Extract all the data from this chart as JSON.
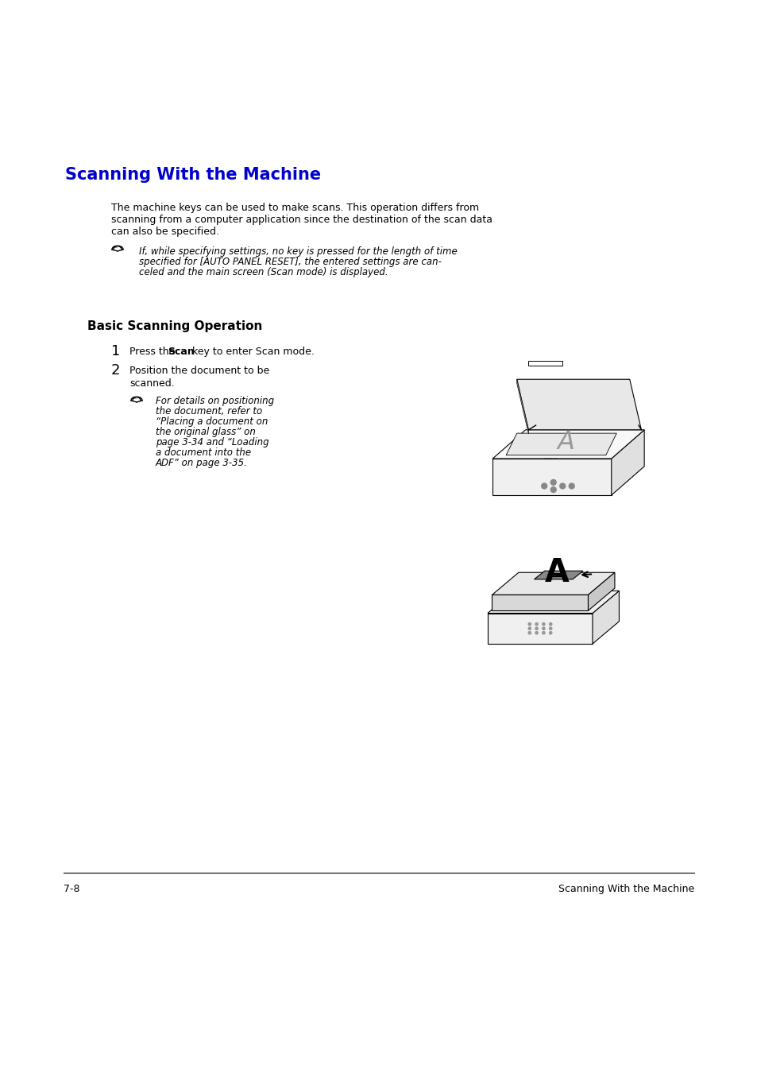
{
  "bg_color": "#ffffff",
  "title": "Scanning With the Machine",
  "title_color": "#0000cc",
  "title_fontsize": 15,
  "body_text1": "The machine keys can be used to make scans. This operation differs from",
  "body_text2": "scanning from a computer application since the destination of the scan data",
  "body_text3": "can also be specified.",
  "body_fontsize": 9,
  "note_text1": "If, while specifying settings, no key is pressed for the length of time",
  "note_text2": "specified for [AUTO PANEL RESET], the entered settings are can-",
  "note_text3": "celed and the main screen (Scan mode) is displayed.",
  "note_fontsize": 8.5,
  "section_title": "Basic Scanning Operation",
  "section_fontsize": 11,
  "step1_a": "Press the ",
  "step1_b": "Scan",
  "step1_c": " key to enter Scan mode.",
  "step1_fontsize": 9,
  "step2_text1": "Position the document to be",
  "step2_text2": "scanned.",
  "step2_fontsize": 9,
  "note2_text1": "For details on positioning",
  "note2_text2": "the document, refer to",
  "note2_text3": "“Placing a document on",
  "note2_text4": "the original glass” on",
  "note2_text5": "page 3-34 and “Loading",
  "note2_text6": "a document into the",
  "note2_text7": "ADF” on page 3-35.",
  "note2_fontsize": 8.5,
  "footer_left": "7-8",
  "footer_right": "Scanning With the Machine",
  "footer_fontsize": 9
}
